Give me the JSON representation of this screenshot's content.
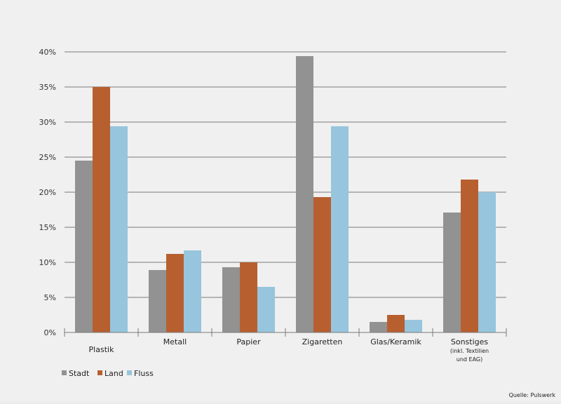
{
  "chart_data": {
    "type": "bar",
    "categories": [
      "Plastik",
      "Metall",
      "Papier",
      "Zigaretten",
      "Glas/Keramik",
      "Sonstiges"
    ],
    "category_notes": [
      "",
      "",
      "",
      "",
      "",
      "(inkl. Textilien und EAG)"
    ],
    "category_note_lines": [
      "(inkl. Textilien",
      "und EAG)"
    ],
    "series": [
      {
        "name": "Stadt",
        "color": "#919291",
        "values": [
          24.5,
          8.9,
          9.3,
          39.4,
          1.5,
          17.1
        ]
      },
      {
        "name": "Land",
        "color": "#b85f30",
        "values": [
          35.0,
          11.2,
          10.0,
          19.3,
          2.5,
          21.8
        ]
      },
      {
        "name": "Fluss",
        "color": "#97c5dd",
        "values": [
          29.4,
          11.7,
          6.5,
          29.4,
          1.8,
          20.0
        ]
      }
    ],
    "title": "",
    "xlabel": "",
    "ylabel": "",
    "ylim": [
      0,
      40
    ],
    "yticks": [
      "0%",
      "5%",
      "10%",
      "15%",
      "20%",
      "25%",
      "30%",
      "35%",
      "40%"
    ],
    "grid": true,
    "legend_position": "bottom-left",
    "source": "Quelle: Pulswerk"
  }
}
